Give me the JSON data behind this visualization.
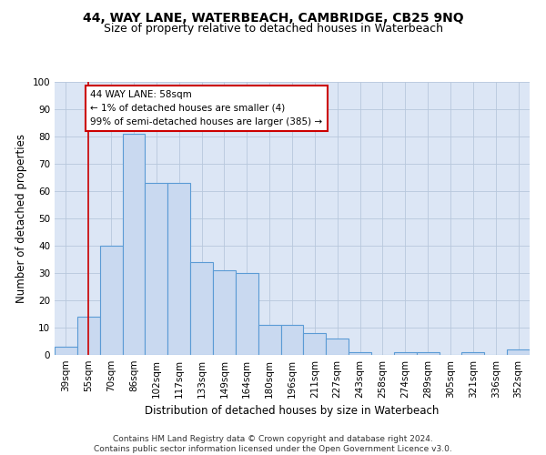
{
  "title": "44, WAY LANE, WATERBEACH, CAMBRIDGE, CB25 9NQ",
  "subtitle": "Size of property relative to detached houses in Waterbeach",
  "xlabel": "Distribution of detached houses by size in Waterbeach",
  "ylabel": "Number of detached properties",
  "categories": [
    "39sqm",
    "55sqm",
    "70sqm",
    "86sqm",
    "102sqm",
    "117sqm",
    "133sqm",
    "149sqm",
    "164sqm",
    "180sqm",
    "196sqm",
    "211sqm",
    "227sqm",
    "243sqm",
    "258sqm",
    "274sqm",
    "289sqm",
    "305sqm",
    "321sqm",
    "336sqm",
    "352sqm"
  ],
  "values": [
    3,
    14,
    40,
    81,
    63,
    63,
    34,
    31,
    30,
    11,
    11,
    8,
    6,
    1,
    0,
    1,
    1,
    0,
    1,
    0,
    2
  ],
  "bar_color": "#c9d9f0",
  "bar_edge_color": "#5b9bd5",
  "annotation_text_line1": "44 WAY LANE: 58sqm",
  "annotation_text_line2": "← 1% of detached houses are smaller (4)",
  "annotation_text_line3": "99% of semi-detached houses are larger (385) →",
  "annotation_box_color": "#ffffff",
  "annotation_box_edge_color": "#cc0000",
  "red_line_x": 1,
  "ylim": [
    0,
    100
  ],
  "yticks": [
    0,
    10,
    20,
    30,
    40,
    50,
    60,
    70,
    80,
    90,
    100
  ],
  "grid_color": "#b8c8dc",
  "bg_color": "#dce6f5",
  "footer_line1": "Contains HM Land Registry data © Crown copyright and database right 2024.",
  "footer_line2": "Contains public sector information licensed under the Open Government Licence v3.0.",
  "title_fontsize": 10,
  "subtitle_fontsize": 9,
  "xlabel_fontsize": 8.5,
  "ylabel_fontsize": 8.5,
  "tick_fontsize": 7.5,
  "ann_fontsize": 7.5,
  "footer_fontsize": 6.5
}
